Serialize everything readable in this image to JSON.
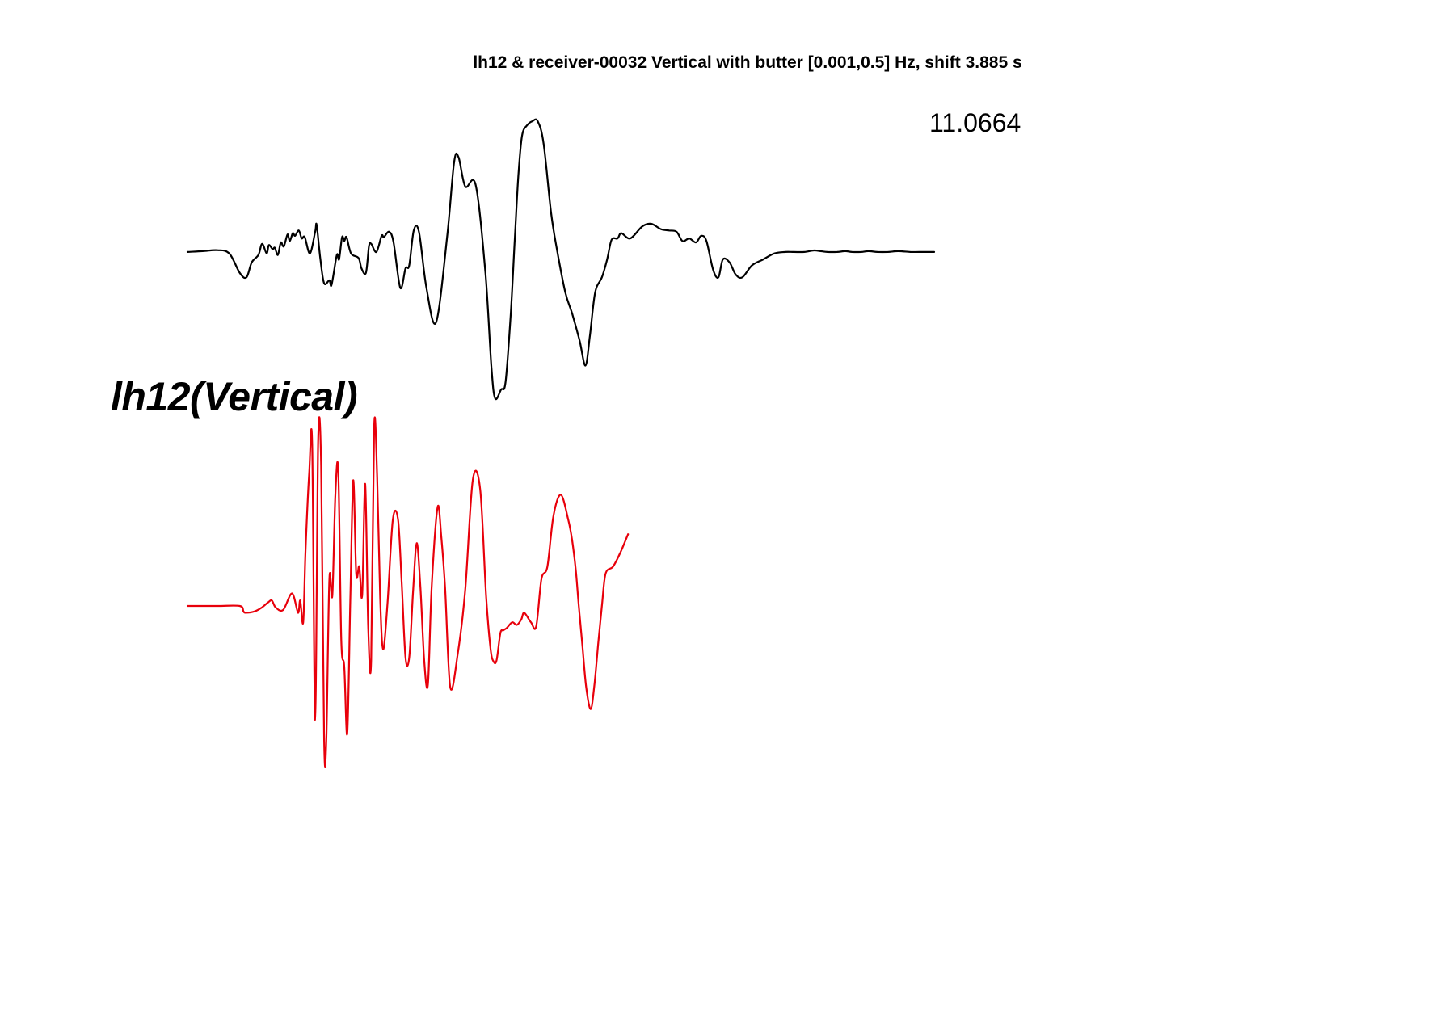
{
  "title": "lh12 & receiver-00032 Vertical with butter [0.001,0.5] Hz, shift 3.885 s",
  "peak_value": "11.0664",
  "station_label": "lh12(Vertical)",
  "colors": {
    "observed": "#000000",
    "synthetic": "#e8000b",
    "background": "#ffffff"
  },
  "chart_data": {
    "type": "line",
    "title": "lh12 & receiver-00032 Vertical with butter [0.001,0.5] Hz, shift 3.885 s",
    "xlabel": "",
    "ylabel": "",
    "axes_visible": false,
    "grid": false,
    "annotations": [
      "11.0664",
      "lh12(Vertical)"
    ],
    "xlim": [
      0,
      1000
    ],
    "ylim": [
      -1,
      1
    ],
    "series": [
      {
        "color": "#000000",
        "x": [
          0,
          20,
          40,
          56,
          70,
          79,
          86,
          95,
          100,
          106,
          109,
          114,
          117,
          121,
          125,
          129,
          134,
          137,
          141,
          144,
          149,
          153,
          157,
          164,
          171,
          173,
          178,
          183,
          190,
          193,
          200,
          203,
          207,
          210,
          213,
          219,
          229,
          233,
          239,
          243,
          246,
          253,
          260,
          263,
          270,
          276,
          285,
          292,
          297,
          303,
          310,
          320,
          333,
          348,
          357,
          363,
          372,
          386,
          399,
          407,
          412,
          420,
          426,
          433,
          438,
          443,
          448,
          455,
          462,
          469,
          477,
          487,
          495,
          506,
          515,
          525,
          533,
          539,
          546,
          555,
          562,
          568,
          576,
          581,
          593,
          609,
          621,
          634,
          645,
          655,
          663,
          672,
          681,
          688,
          695,
          704,
          711,
          717,
          726,
          734,
          743,
          756,
          771,
          786,
          800,
          812,
          826,
          839,
          848,
          857,
          870,
          881,
          890,
          902,
          912,
          924,
          938,
          952,
          968,
          980,
          1000
        ],
        "y": [
          -0.01,
          -0.005,
          0.002,
          -0.02,
          -0.15,
          -0.18,
          -0.08,
          -0.03,
          0.05,
          -0.02,
          0.04,
          0.01,
          0.02,
          -0.03,
          0.06,
          0.03,
          0.12,
          0.07,
          0.13,
          0.11,
          0.15,
          0.09,
          0.1,
          -0.02,
          0.14,
          0.19,
          -0.06,
          -0.22,
          -0.2,
          -0.23,
          -0.03,
          -0.06,
          0.1,
          0.07,
          0.1,
          -0.02,
          -0.05,
          -0.12,
          -0.15,
          0.03,
          0.05,
          -0.01,
          0.11,
          0.1,
          0.14,
          0.06,
          -0.25,
          -0.12,
          -0.1,
          0.15,
          0.14,
          -0.25,
          -0.48,
          0.12,
          0.66,
          0.7,
          0.48,
          0.49,
          -0.15,
          -0.78,
          -0.99,
          -0.93,
          -0.88,
          -0.42,
          0.05,
          0.55,
          0.86,
          0.94,
          0.97,
          0.97,
          0.8,
          0.28,
          0.0,
          -0.28,
          -0.42,
          -0.6,
          -0.77,
          -0.57,
          -0.28,
          -0.18,
          -0.06,
          0.08,
          0.09,
          0.13,
          0.09,
          0.18,
          0.2,
          0.16,
          0.15,
          0.14,
          0.07,
          0.09,
          0.06,
          0.11,
          0.07,
          -0.13,
          -0.18,
          -0.06,
          -0.08,
          -0.16,
          -0.18,
          -0.1,
          -0.06,
          -0.02,
          -0.01,
          -0.01,
          -0.01,
          0.0,
          -0.005,
          -0.01,
          -0.01,
          -0.005,
          -0.01,
          -0.01,
          -0.005,
          -0.01,
          -0.01,
          -0.005,
          -0.01,
          -0.01,
          -0.01
        ]
      },
      {
        "color": "#e8000b",
        "x": [
          0,
          40,
          70,
          75,
          78,
          90,
          100,
          108,
          113,
          118,
          128,
          140,
          148,
          151,
          155,
          158,
          163,
          167,
          171,
          175,
          179,
          183,
          186,
          190,
          194,
          198,
          202,
          206,
          210,
          214,
          218,
          222,
          226,
          230,
          234,
          238,
          242,
          246,
          250,
          254,
          258,
          262,
          268,
          275,
          282,
          287,
          292,
          297,
          302,
          307,
          312,
          317,
          322,
          327,
          335,
          340,
          345,
          352,
          362,
          372,
          382,
          392,
          400,
          406,
          410,
          414,
          419,
          423,
          428,
          435,
          441,
          447,
          451,
          460,
          467,
          474,
          482,
          490,
          500,
          510,
          515,
          520,
          524,
          529,
          534,
          540,
          545,
          550,
          555,
          560,
          570,
          580,
          590
        ],
        "y": [
          0.0,
          0.0,
          0.0,
          -0.04,
          -0.05,
          -0.04,
          -0.01,
          0.02,
          0.03,
          -0.01,
          -0.03,
          0.07,
          -0.05,
          0.03,
          -0.12,
          0.3,
          0.74,
          0.9,
          -0.84,
          0.92,
          0.78,
          -0.99,
          -0.97,
          0.15,
          0.06,
          0.62,
          0.75,
          -0.25,
          -0.45,
          -0.94,
          0.02,
          0.7,
          0.18,
          0.22,
          0.06,
          0.68,
          -0.15,
          -0.4,
          1.0,
          0.72,
          0.05,
          -0.32,
          0.02,
          0.48,
          0.48,
          0.12,
          -0.38,
          -0.38,
          0.07,
          0.35,
          0.1,
          -0.4,
          -0.58,
          0.1,
          0.55,
          0.38,
          0.1,
          -0.6,
          -0.35,
          0.09,
          0.7,
          0.65,
          0.05,
          -0.32,
          -0.41,
          -0.4,
          -0.2,
          -0.18,
          -0.16,
          -0.12,
          -0.14,
          -0.1,
          -0.05,
          -0.12,
          -0.15,
          0.15,
          0.22,
          0.5,
          0.62,
          0.48,
          0.37,
          0.2,
          0.0,
          -0.3,
          -0.6,
          -0.76,
          -0.58,
          -0.28,
          0.0,
          0.18,
          0.22,
          0.3,
          0.4
        ]
      }
    ]
  }
}
